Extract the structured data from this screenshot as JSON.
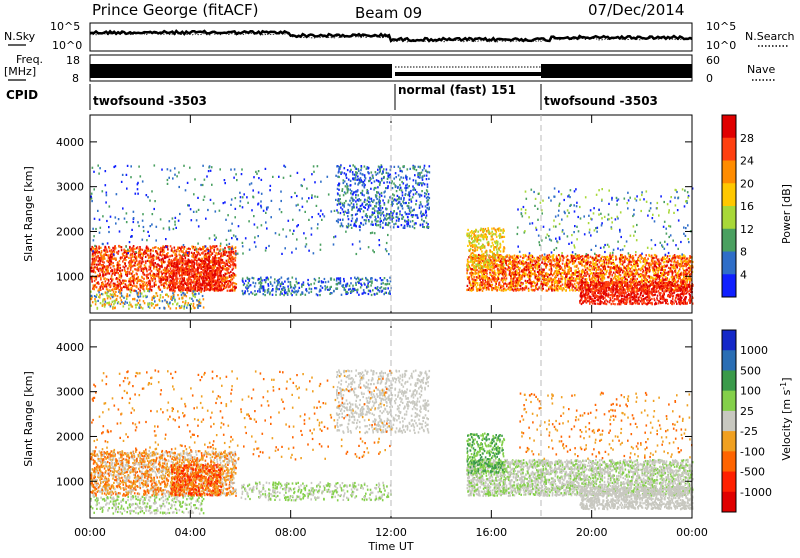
{
  "header": {
    "station": "Prince George (fitACF)",
    "beam": "Beam 09",
    "date": "07/Dec/2014"
  },
  "top_panel": {
    "left_label_1": "N.Sky",
    "left_label_2": "Freq.",
    "left_label_3": "[MHz]",
    "left_label_4": "CPID",
    "right_label_1": "N.Search",
    "right_label_2": "Nave",
    "nsky_ticks": [
      "10^5",
      "10^0"
    ],
    "nsearch_ticks": [
      "10^5",
      "10^0"
    ],
    "freq_ticks": [
      "18",
      "8"
    ],
    "nave_ticks": [
      "60",
      "0"
    ],
    "cpid_segments": [
      {
        "label": "twofsound -3503",
        "start_hour": 0,
        "end_hour": 12
      },
      {
        "label": "normal (fast) 151",
        "start_hour": 12,
        "end_hour": 18
      },
      {
        "label": "twofsound -3503",
        "start_hour": 18,
        "end_hour": 24
      }
    ]
  },
  "chart_data": [
    {
      "type": "heatmap",
      "title": "",
      "xlabel": "",
      "ylabel": "Slant Range [km]",
      "xlim_hours": [
        0,
        24
      ],
      "ylim": [
        180,
        4600
      ],
      "y_ticks": [
        1000,
        2000,
        3000,
        4000
      ],
      "colorbar": {
        "label": "Power [dB]",
        "ticks": [
          "28",
          "24",
          "20",
          "16",
          "12",
          "8",
          "4"
        ],
        "colors": [
          "#e00000",
          "#ff4010",
          "#ff8c00",
          "#ffc800",
          "#a8d838",
          "#4aa060",
          "#2f6ec8",
          "#1020ff"
        ]
      }
    },
    {
      "type": "heatmap",
      "title": "",
      "xlabel": "Time UT",
      "ylabel": "Slant Range [km]",
      "xlim_hours": [
        0,
        24
      ],
      "ylim": [
        180,
        4600
      ],
      "y_ticks": [
        1000,
        2000,
        3000,
        4000
      ],
      "x_tick_labels": [
        "00:00",
        "04:00",
        "08:00",
        "12:00",
        "16:00",
        "20:00",
        "00:00"
      ],
      "colorbar": {
        "label": "Velocity [m s",
        "label_sup": "-1",
        "label_end": "]",
        "ticks": [
          "1000",
          "500",
          "100",
          "25",
          "-25",
          "-100",
          "-500",
          "-1000"
        ],
        "colors": [
          "#1428c8",
          "#2a6eb4",
          "#3a9a4a",
          "#84d04a",
          "#c8c8c0",
          "#f0a020",
          "#ff6400",
          "#ff2000",
          "#e00000"
        ]
      }
    }
  ]
}
